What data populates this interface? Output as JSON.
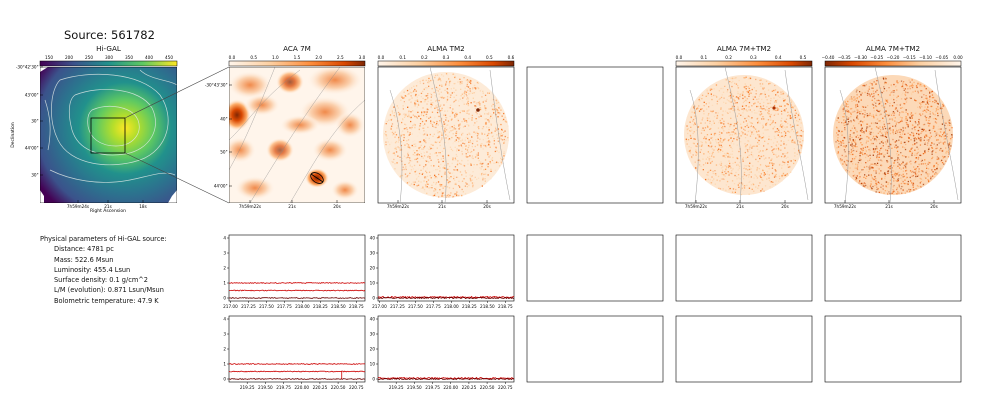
{
  "page": {
    "title": "Source: 561782"
  },
  "params": {
    "header": "Physical parameters of Hi-GAL source:",
    "lines": [
      "Distance: 4781 pc",
      "Mass: 522.6 Msun",
      "Luminosity: 455.4 Lsun",
      "Surface density: 0.1 g/cm^2",
      "L/M (evolution): 0.871 Lsun/Msun",
      "Bolometric temperature: 47.9 K"
    ]
  },
  "panels": {
    "higal": {
      "title": "Hi-GAL",
      "colorbar_ticks": [
        "150",
        "200",
        "250",
        "300",
        "350",
        "400",
        "450"
      ],
      "ra_ticks": [
        "7h59m24s",
        "21s",
        "18s"
      ],
      "dec_ticks": [
        "-30°42'30\"",
        "43'00\"",
        "30\"",
        "44'00\"",
        "30\""
      ],
      "xlabel": "Right Ascension",
      "ylabel": "Declination"
    },
    "aca7m": {
      "title": "ACA 7M",
      "colorbar_ticks": [
        "0.0",
        "0.5",
        "1.0",
        "1.5",
        "2.0",
        "2.5",
        "3.0"
      ],
      "ra_ticks": [
        "7h59m22s",
        "21s",
        "20s"
      ],
      "dec_ticks": [
        "-30°43'30\"",
        "40\"",
        "50\"",
        "44'00\""
      ]
    },
    "almatm2": {
      "title": "ALMA TM2",
      "colorbar_ticks": [
        "0.0",
        "0.1",
        "0.2",
        "0.3",
        "0.4",
        "0.5",
        "0.6"
      ],
      "ra_ticks": [
        "7h59m22s",
        "21s",
        "20s"
      ]
    },
    "alma7mtm2": {
      "title": "ALMA 7M+TM2",
      "colorbar_ticks": [
        "0.0",
        "0.1",
        "0.2",
        "0.3",
        "0.4",
        "0.5"
      ],
      "ra_ticks": [
        "7h59m22s",
        "21s",
        "20s"
      ]
    },
    "alma7mtm2_neg": {
      "title": "ALMA 7M+TM2",
      "colorbar_ticks": [
        "−0.40",
        "−0.35",
        "−0.30",
        "−0.25",
        "−0.20",
        "−0.15",
        "−0.10",
        "−0.05",
        "0.00"
      ],
      "ra_ticks": [
        "7h59m22s",
        "21s",
        "20s"
      ]
    }
  },
  "colors": {
    "viridis": [
      "#440154",
      "#3b528b",
      "#21918c",
      "#5ec962",
      "#fde725"
    ],
    "orange_map": [
      "#fff5eb",
      "#fdd0a2",
      "#fd8d3c",
      "#d94801",
      "#7f2704"
    ],
    "spectrum_red": "#cc0000",
    "spectrum_dark": "#660000"
  },
  "chart_data": [
    {
      "type": "line",
      "panel": "spectrum-aca-row1",
      "x_ticks": [
        "217.00",
        "217.25",
        "217.50",
        "217.75",
        "218.00",
        "218.25",
        "218.50",
        "218.75"
      ],
      "y_ticks": [
        "0",
        "1",
        "2",
        "3",
        "4"
      ],
      "xlim": [
        216.98,
        218.87
      ],
      "ylim": [
        -0.2,
        4.2
      ],
      "series": [
        {
          "values_level": 1.0
        },
        {
          "values_level": 0.5
        },
        {
          "values_level": 0.0
        }
      ]
    },
    {
      "type": "line",
      "panel": "spectrum-tm2-row1",
      "x_ticks": [
        "217.00",
        "217.25",
        "217.50",
        "217.75",
        "218.00",
        "218.25",
        "218.50",
        "218.75"
      ],
      "y_ticks": [
        "0",
        "10",
        "20",
        "30",
        "40"
      ],
      "xlim": [
        216.98,
        218.87
      ],
      "ylim": [
        -2,
        42
      ],
      "series": [
        {
          "values_level": 0.6
        },
        {
          "values_level": 0.0
        }
      ]
    },
    {
      "type": "line",
      "panel": "spectrum-aca-row2",
      "x_ticks": [
        "219.25",
        "219.50",
        "219.75",
        "220.00",
        "220.25",
        "220.50",
        "220.75"
      ],
      "y_ticks": [
        "0",
        "1",
        "2",
        "3",
        "4"
      ],
      "xlim": [
        219.0,
        220.87
      ],
      "ylim": [
        -0.2,
        4.2
      ],
      "series": [
        {
          "values_level": 1.0
        },
        {
          "values_level": 0.5
        },
        {
          "values_level": 0.0
        }
      ]
    },
    {
      "type": "line",
      "panel": "spectrum-tm2-row2",
      "x_ticks": [
        "219.25",
        "219.50",
        "219.75",
        "220.00",
        "220.25",
        "220.50",
        "220.75"
      ],
      "y_ticks": [
        "0",
        "10",
        "20",
        "30",
        "40"
      ],
      "xlim": [
        219.0,
        220.87
      ],
      "ylim": [
        -2,
        42
      ],
      "series": [
        {
          "values_level": 0.6
        },
        {
          "values_level": 0.0
        }
      ]
    }
  ]
}
